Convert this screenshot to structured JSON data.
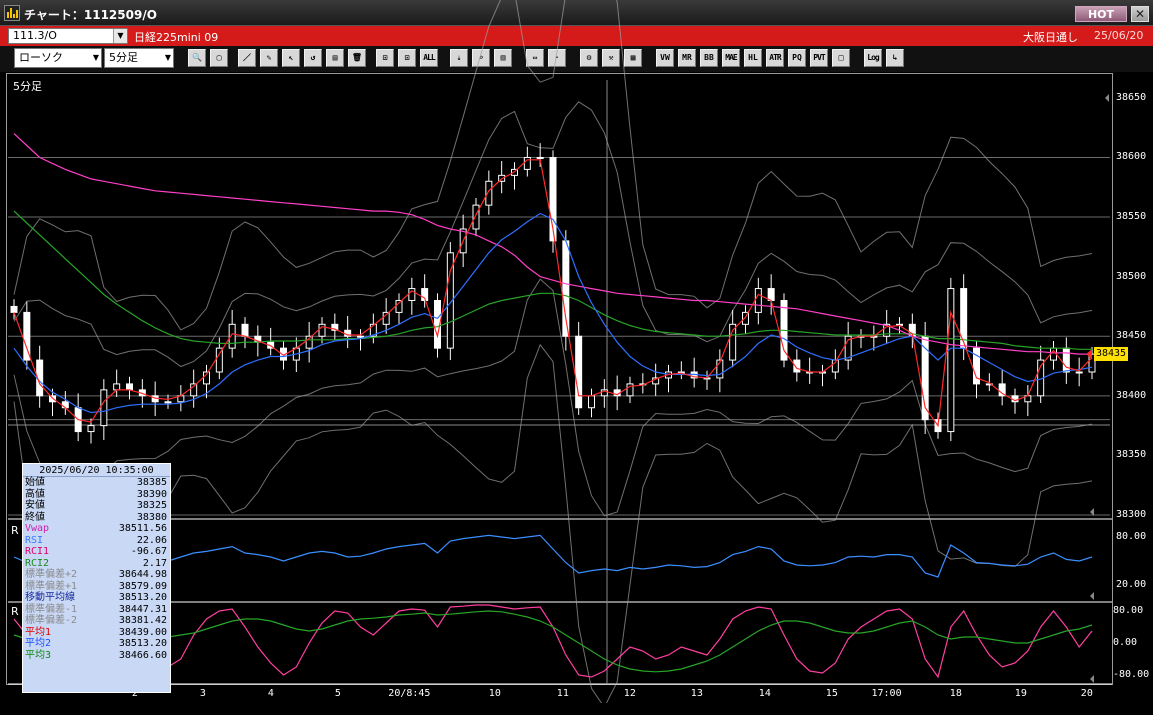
{
  "window": {
    "title": "チャート：1112509/O",
    "hot_label": "HOT",
    "close_label": "✕"
  },
  "symbol_bar": {
    "symbol": "111.3/O",
    "instrument": "日経225mini 09",
    "market": "大阪日通し",
    "date": "25/06/20"
  },
  "toolbar": {
    "chart_type": "ローソク",
    "period": "5分足",
    "buttons": [
      {
        "name": "zoom-icon",
        "glyph": "🔍"
      },
      {
        "name": "window-icon",
        "glyph": "▢"
      },
      {
        "name": "trendline-icon",
        "glyph": "／"
      },
      {
        "name": "drawing-tool-icon",
        "glyph": "✎"
      },
      {
        "name": "cursor-icon",
        "glyph": "↖"
      },
      {
        "name": "arrow-tool-icon",
        "glyph": "↺"
      },
      {
        "name": "document-icon",
        "glyph": "▤"
      },
      {
        "name": "trash-icon",
        "glyph": "🗑"
      },
      {
        "name": "candle-width-icon",
        "glyph": "⊡"
      },
      {
        "name": "candle-width-alt-icon",
        "glyph": "⊡"
      },
      {
        "name": "all-button",
        "glyph": "ALL"
      },
      {
        "name": "settings-down-icon",
        "glyph": "⇣"
      },
      {
        "name": "search-chart-icon",
        "glyph": "⌕"
      },
      {
        "name": "bar-compare-icon",
        "glyph": "▥"
      },
      {
        "name": "scale-icon",
        "glyph": "⇔"
      },
      {
        "name": "blank-icon",
        "glyph": "·"
      },
      {
        "name": "gear-icon",
        "glyph": "⚙"
      },
      {
        "name": "tool-icon",
        "glyph": "⚒"
      },
      {
        "name": "color-icon",
        "glyph": "▦"
      },
      {
        "name": "vwap-icon",
        "glyph": "VW"
      },
      {
        "name": "mr-icon",
        "glyph": "MR"
      },
      {
        "name": "bb-icon",
        "glyph": "BB"
      },
      {
        "name": "mae-icon",
        "glyph": "MAE"
      },
      {
        "name": "hl-icon",
        "glyph": "HL"
      },
      {
        "name": "atr-icon",
        "glyph": "ATR"
      },
      {
        "name": "pq-icon",
        "glyph": "PQ"
      },
      {
        "name": "pvt-icon",
        "glyph": "PVT"
      },
      {
        "name": "frame-icon",
        "glyph": "□"
      },
      {
        "name": "log-icon",
        "glyph": "Log"
      },
      {
        "name": "export-icon",
        "glyph": "↳"
      }
    ]
  },
  "chart": {
    "period_label": "5分足",
    "last_price": "38435",
    "rsi_label": "R",
    "rci_label": "R",
    "colors": {
      "candle_up": "#ffffff",
      "candle_down": "#ffffff",
      "ma1": "#ff2a2a",
      "ma2": "#2f6fff",
      "ma3": "#28a528",
      "vwap": "#ff3fc8",
      "bands": "#a0a0a0",
      "rsi": "#3b8fff",
      "rci1": "#ff3fa0",
      "rci2": "#28a528"
    }
  },
  "chart_data": {
    "type": "candlestick",
    "price_axis": {
      "ticks": [
        "38650",
        "38600",
        "38550",
        "38500",
        "38450",
        "38400",
        "38350",
        "38300"
      ],
      "range": [
        38300,
        38665
      ]
    },
    "rsi_axis": {
      "ticks": [
        "80.00",
        "20.00"
      ],
      "range": [
        0,
        100
      ]
    },
    "rci_axis": {
      "ticks": [
        "80.00",
        "0.00",
        "-80.00"
      ],
      "range": [
        -100,
        100
      ]
    },
    "x_ticks": [
      "2",
      "3",
      "4",
      "5",
      "20/8:45",
      "10",
      "11",
      "12",
      "13",
      "14",
      "15",
      "17:00",
      "18",
      "19",
      "20"
    ],
    "close": [
      38470,
      38430,
      38400,
      38395,
      38390,
      38370,
      38375,
      38405,
      38410,
      38405,
      38400,
      38395,
      38395,
      38400,
      38410,
      38420,
      38440,
      38460,
      38450,
      38445,
      38440,
      38430,
      38440,
      38450,
      38460,
      38455,
      38450,
      38450,
      38460,
      38470,
      38480,
      38490,
      38480,
      38440,
      38520,
      38540,
      38560,
      38580,
      38585,
      38590,
      38600,
      38600,
      38530,
      38450,
      38390,
      38400,
      38405,
      38400,
      38410,
      38410,
      38415,
      38420,
      38420,
      38415,
      38415,
      38430,
      38460,
      38470,
      38490,
      38480,
      38430,
      38420,
      38420,
      38420,
      38430,
      38450,
      38450,
      38450,
      38460,
      38460,
      38450,
      38380,
      38370,
      38490,
      38440,
      38410,
      38410,
      38400,
      38395,
      38400,
      38430,
      38440,
      38420,
      38420,
      38435
    ],
    "vwap": [
      38620,
      38610,
      38600,
      38595,
      38590,
      38586,
      38582,
      38580,
      38578,
      38576,
      38574,
      38572,
      38571,
      38570,
      38569,
      38568,
      38567,
      38566,
      38565,
      38564,
      38563,
      38562,
      38561,
      38560,
      38559,
      38558,
      38557,
      38556,
      38555,
      38555,
      38554,
      38552,
      38548,
      38543,
      38540,
      38538,
      38535,
      38530,
      38525,
      38518,
      38508,
      38500,
      38497,
      38494,
      38492,
      38490,
      38488,
      38486,
      38485,
      38484,
      38483,
      38482,
      38481,
      38480,
      38480,
      38479,
      38478,
      38477,
      38476,
      38475,
      38474,
      38473,
      38471,
      38469,
      38467,
      38465,
      38463,
      38461,
      38459,
      38455,
      38450,
      38447,
      38445,
      38443,
      38442,
      38441,
      38440,
      38439,
      38438,
      38437,
      38437,
      38436,
      38436,
      38435,
      38435
    ],
    "ma1": [
      38470,
      38440,
      38410,
      38398,
      38390,
      38380,
      38378,
      38395,
      38405,
      38405,
      38402,
      38398,
      38397,
      38400,
      38408,
      38418,
      38435,
      38452,
      38450,
      38446,
      38442,
      38434,
      38440,
      38448,
      38458,
      38456,
      38451,
      38451,
      38459,
      38468,
      38478,
      38488,
      38482,
      38450,
      38505,
      38530,
      38552,
      38572,
      38582,
      38588,
      38598,
      38598,
      38540,
      38465,
      38400,
      38400,
      38404,
      38401,
      38408,
      38409,
      38414,
      38418,
      38419,
      38416,
      38415,
      38428,
      38455,
      38466,
      38485,
      38480,
      38438,
      38423,
      38420,
      38420,
      38428,
      38447,
      38450,
      38450,
      38458,
      38459,
      38452,
      38390,
      38375,
      38470,
      38445,
      38415,
      38411,
      38402,
      38396,
      38400,
      38425,
      38438,
      38424,
      38421,
      38432
    ],
    "ma2": [
      38440,
      38425,
      38412,
      38403,
      38397,
      38390,
      38386,
      38387,
      38390,
      38392,
      38393,
      38393,
      38393,
      38394,
      38397,
      38402,
      38410,
      38420,
      38426,
      38430,
      38433,
      38433,
      38435,
      38438,
      38443,
      38446,
      38447,
      38448,
      38451,
      38455,
      38460,
      38466,
      38469,
      38465,
      38478,
      38492,
      38506,
      38520,
      38531,
      38538,
      38546,
      38553,
      38548,
      38530,
      38500,
      38478,
      38460,
      38445,
      38433,
      38425,
      38420,
      38418,
      38418,
      38418,
      38417,
      38418,
      38425,
      38433,
      38444,
      38451,
      38448,
      38441,
      38436,
      38432,
      38430,
      38432,
      38436,
      38440,
      38444,
      38448,
      38450,
      38440,
      38430,
      38440,
      38440,
      38434,
      38428,
      38422,
      38416,
      38412,
      38414,
      38419,
      38421,
      38422,
      38424
    ],
    "ma3": [
      38555,
      38545,
      38535,
      38525,
      38515,
      38505,
      38495,
      38485,
      38477,
      38470,
      38463,
      38457,
      38452,
      38448,
      38446,
      38445,
      38444,
      38444,
      38445,
      38445,
      38446,
      38446,
      38446,
      38447,
      38447,
      38447,
      38448,
      38448,
      38449,
      38450,
      38452,
      38455,
      38457,
      38458,
      38462,
      38467,
      38472,
      38477,
      38480,
      38482,
      38484,
      38486,
      38486,
      38484,
      38480,
      38474,
      38468,
      38463,
      38459,
      38456,
      38454,
      38453,
      38452,
      38451,
      38450,
      38450,
      38451,
      38452,
      38454,
      38455,
      38455,
      38454,
      38453,
      38452,
      38451,
      38451,
      38451,
      38451,
      38452,
      38452,
      38452,
      38450,
      38448,
      38448,
      38447,
      38446,
      38445,
      38444,
      38442,
      38441,
      38440,
      38440,
      38440,
      38439,
      38439
    ],
    "rsi": [
      55,
      48,
      42,
      40,
      38,
      36,
      45,
      55,
      60,
      55,
      52,
      48,
      50,
      55,
      60,
      62,
      65,
      68,
      60,
      58,
      55,
      50,
      55,
      60,
      62,
      60,
      55,
      56,
      60,
      65,
      68,
      70,
      72,
      60,
      75,
      78,
      80,
      82,
      80,
      78,
      80,
      82,
      65,
      48,
      35,
      38,
      40,
      38,
      42,
      40,
      42,
      45,
      44,
      42,
      43,
      48,
      58,
      62,
      68,
      65,
      50,
      45,
      44,
      45,
      48,
      55,
      56,
      55,
      58,
      58,
      55,
      35,
      30,
      70,
      60,
      48,
      47,
      45,
      44,
      46,
      55,
      60,
      52,
      50,
      55
    ],
    "rci1": [
      60,
      20,
      -40,
      -80,
      -90,
      -70,
      -20,
      30,
      70,
      60,
      20,
      -30,
      -60,
      -40,
      20,
      60,
      80,
      85,
      40,
      -10,
      -50,
      -80,
      -60,
      0,
      50,
      80,
      75,
      40,
      20,
      50,
      80,
      85,
      82,
      40,
      90,
      92,
      95,
      95,
      90,
      85,
      88,
      90,
      40,
      -30,
      -80,
      -85,
      -70,
      -40,
      -10,
      -20,
      -40,
      -30,
      -10,
      -20,
      -30,
      10,
      60,
      80,
      90,
      85,
      20,
      -40,
      -70,
      -75,
      -50,
      10,
      40,
      60,
      80,
      85,
      60,
      -40,
      -85,
      40,
      80,
      20,
      -30,
      -60,
      -50,
      -20,
      40,
      80,
      40,
      -10,
      30
    ],
    "rci2": [
      20,
      10,
      0,
      -10,
      -20,
      -30,
      -30,
      -20,
      -10,
      0,
      10,
      15,
      15,
      20,
      25,
      35,
      45,
      55,
      60,
      60,
      55,
      45,
      35,
      30,
      35,
      45,
      55,
      60,
      62,
      65,
      70,
      72,
      75,
      70,
      72,
      75,
      78,
      80,
      78,
      72,
      65,
      55,
      40,
      20,
      0,
      -20,
      -40,
      -55,
      -65,
      -70,
      -72,
      -70,
      -65,
      -55,
      -45,
      -30,
      -10,
      10,
      30,
      45,
      55,
      55,
      50,
      40,
      30,
      25,
      25,
      30,
      40,
      50,
      55,
      40,
      20,
      10,
      15,
      15,
      10,
      5,
      0,
      0,
      10,
      20,
      30,
      35,
      45
    ]
  },
  "data_window": {
    "datetime": "2025/06/20  10:35:00",
    "rows": [
      {
        "label": "始値",
        "value": "38385",
        "color": "#000000"
      },
      {
        "label": "高値",
        "value": "38390",
        "color": "#000000"
      },
      {
        "label": "安値",
        "value": "38325",
        "color": "#000000"
      },
      {
        "label": "終値",
        "value": "38380",
        "color": "#000000"
      },
      {
        "label": "Vwap",
        "value": "38511.56",
        "color": "#d11fb0"
      },
      {
        "label": "RSI",
        "value": "22.06",
        "color": "#3b7bff"
      },
      {
        "label": "RCI1",
        "value": "-96.67",
        "color": "#e0006a"
      },
      {
        "label": "RCI2",
        "value": "2.17",
        "color": "#1c8a1c"
      },
      {
        "label": "標準偏差+2",
        "value": "38644.98",
        "color": "#8a8a8a"
      },
      {
        "label": "標準偏差+1",
        "value": "38579.09",
        "color": "#8a8a8a"
      },
      {
        "label": "移動平均線",
        "value": "38513.20",
        "color": "#1a2a9a"
      },
      {
        "label": "標準偏差-1",
        "value": "38447.31",
        "color": "#8a8a8a"
      },
      {
        "label": "標準偏差-2",
        "value": "38381.42",
        "color": "#8a8a8a"
      },
      {
        "label": "平均1",
        "value": "38439.00",
        "color": "#e00000"
      },
      {
        "label": "平均2",
        "value": "38513.20",
        "color": "#1a50ff"
      },
      {
        "label": "平均3",
        "value": "38466.60",
        "color": "#108a10"
      }
    ]
  }
}
